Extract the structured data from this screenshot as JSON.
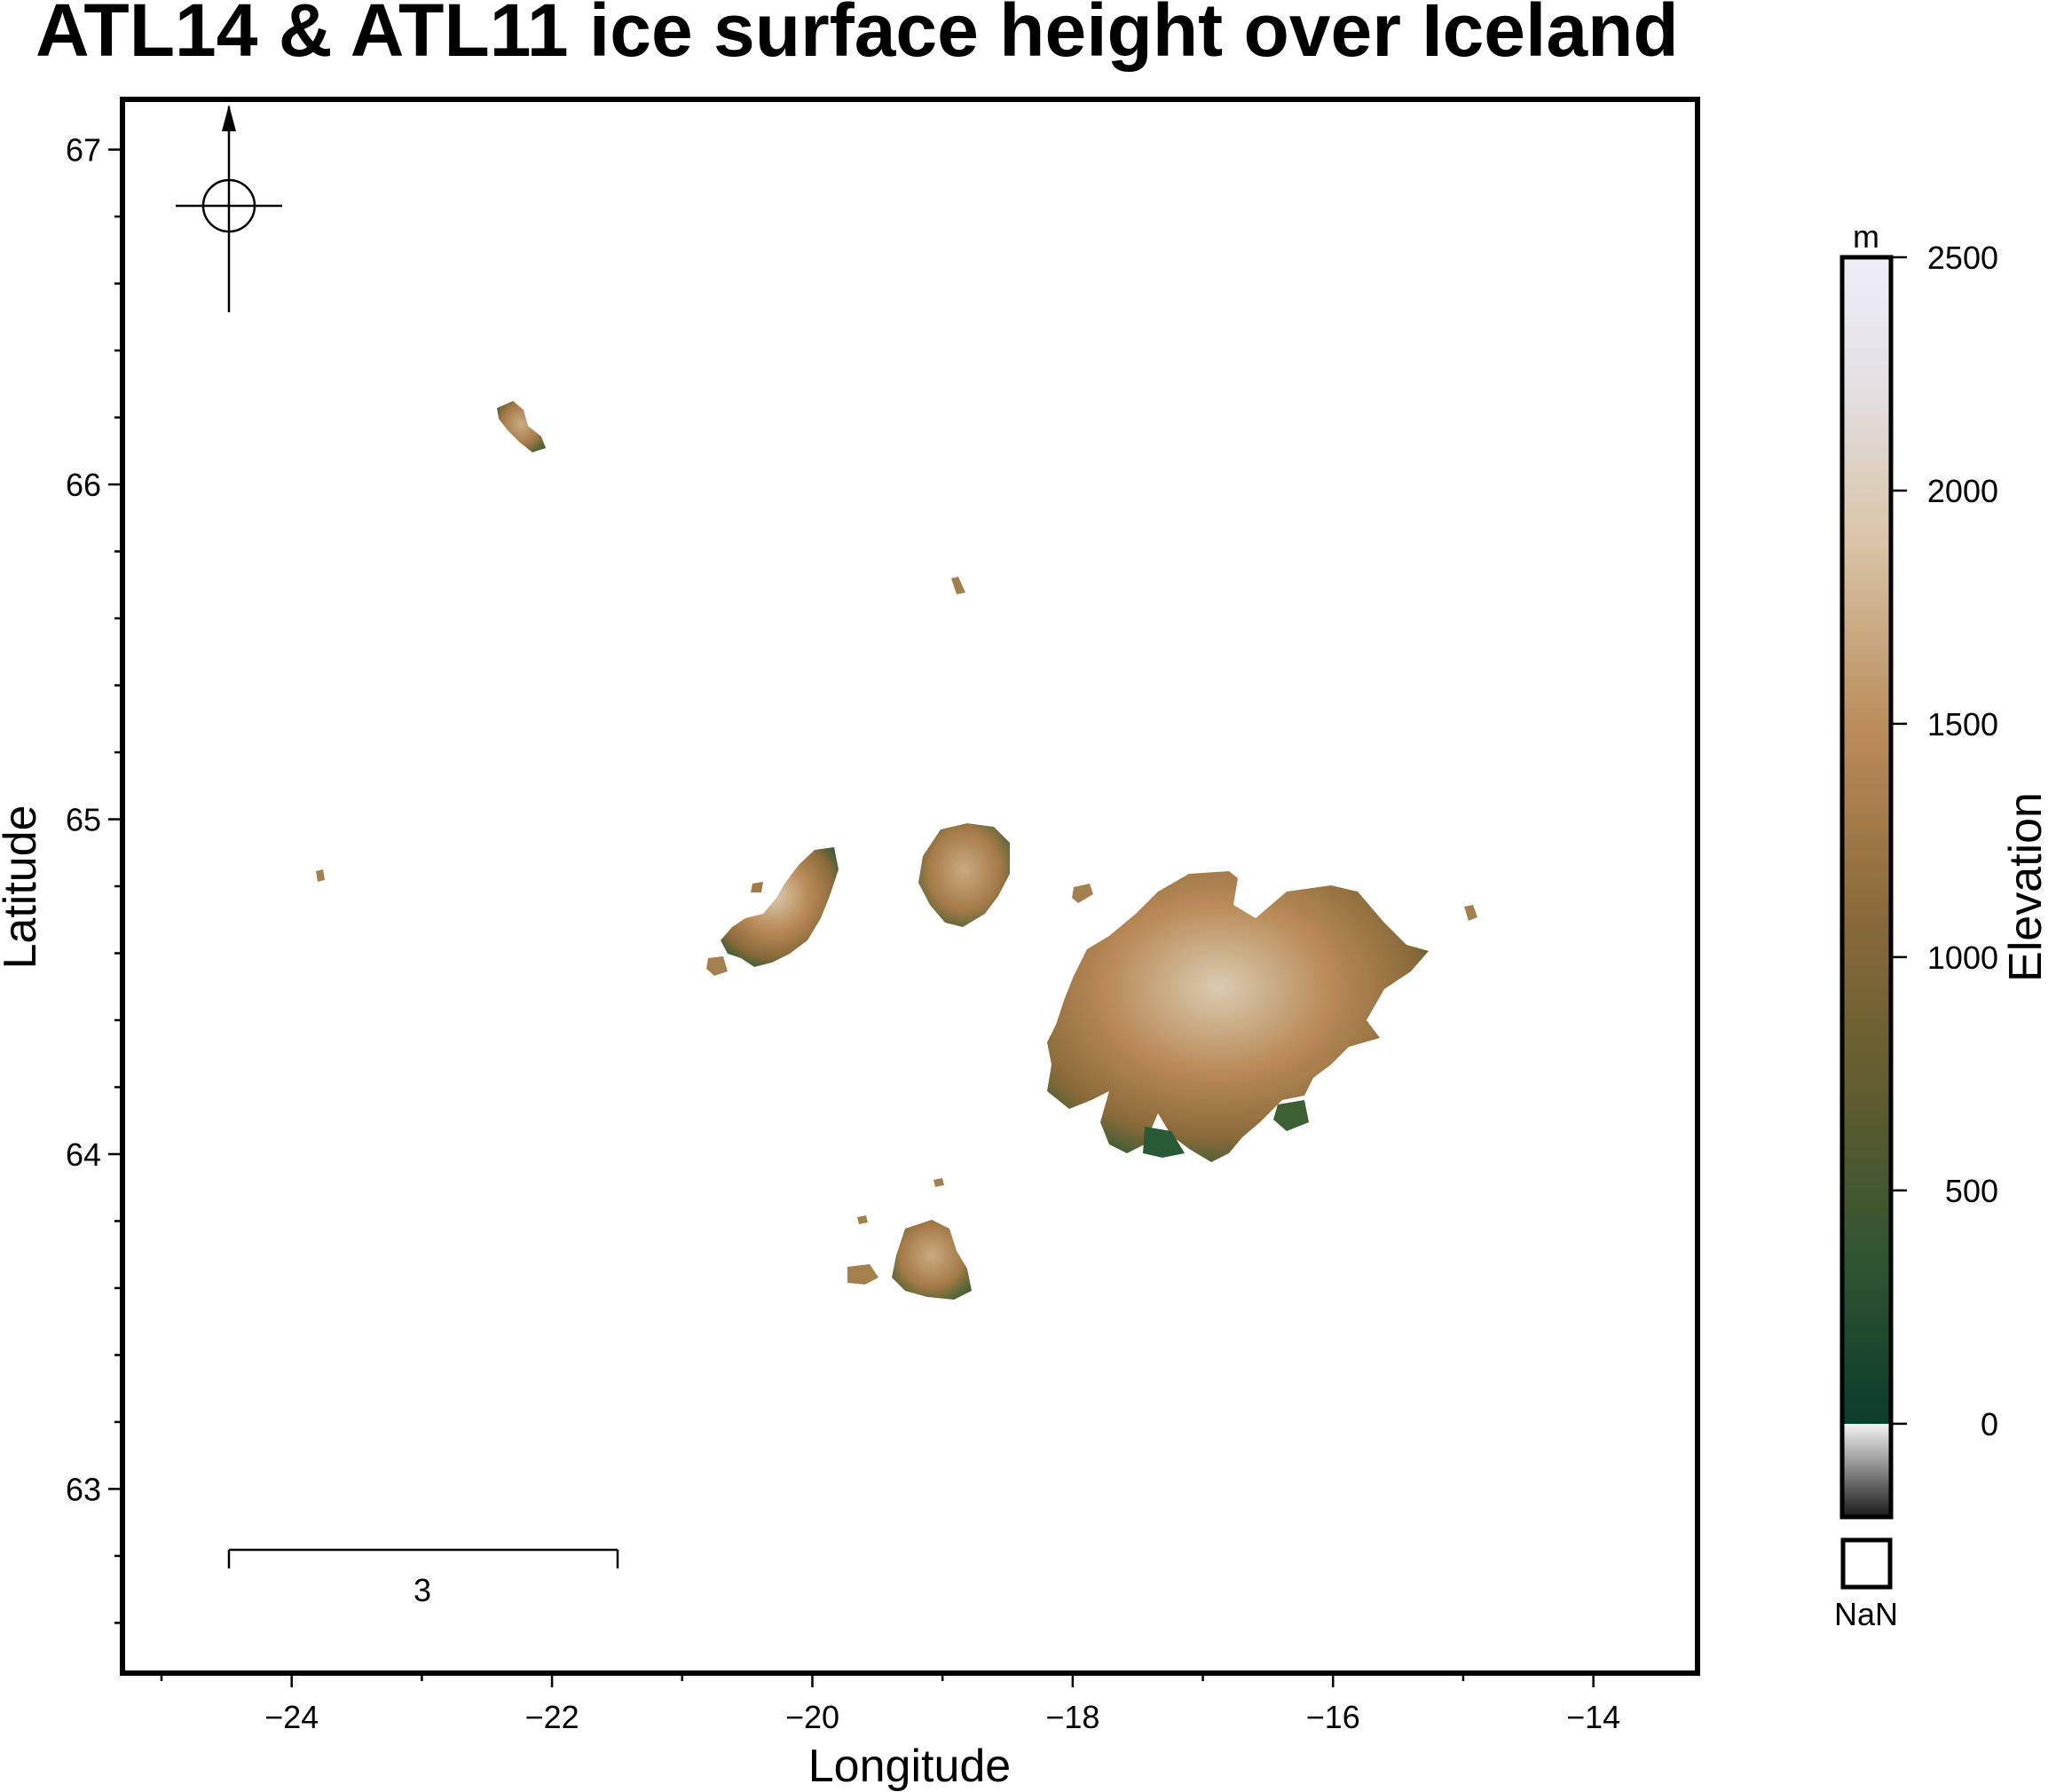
{
  "title": "ATL14 & ATL11 ice surface height over Iceland",
  "map": {
    "xlabel": "Longitude",
    "ylabel": "Latitude",
    "lon_range": [
      -25.3,
      -13.2
    ],
    "lat_range": [
      62.45,
      67.15
    ],
    "lon_ticks": [
      -24,
      -22,
      -20,
      -18,
      -16,
      -14
    ],
    "lon_tick_labels": [
      "−24",
      "−22",
      "−20",
      "−18",
      "−16",
      "−14"
    ],
    "lat_ticks": [
      63,
      64,
      65,
      66,
      67
    ],
    "lat_tick_labels": [
      "63",
      "64",
      "65",
      "66",
      "67"
    ],
    "compass_icon": "north-arrow-compass-icon",
    "scale_bar_label": "3",
    "glaciers": [
      {
        "name": "vatnajokull-ice-cap",
        "lon": -16.8,
        "lat": 64.45
      },
      {
        "name": "langjokull-ice-cap",
        "lon": -20.2,
        "lat": 64.65
      },
      {
        "name": "hofsjokull-ice-cap",
        "lon": -18.85,
        "lat": 64.8
      },
      {
        "name": "myrdalsjokull-ice-cap",
        "lon": -19.1,
        "lat": 63.65
      },
      {
        "name": "drangajokull-ice-cap",
        "lon": -22.25,
        "lat": 66.15
      }
    ]
  },
  "colorbar": {
    "label": "Elevation",
    "unit": "m",
    "ticks": [
      0,
      500,
      1000,
      1500,
      2000,
      2500
    ],
    "tick_labels": [
      "0",
      "500",
      "1000",
      "1500",
      "2000",
      "2500"
    ],
    "min": -200,
    "max": 2500,
    "nan_label": "NaN",
    "colors": {
      "low": "#1a1a1a",
      "sea": "#0b4a30",
      "mid": "#6b5a2a",
      "high": "#b98a57",
      "peak": "#d8cbb4",
      "top": "#eeeef8"
    }
  }
}
